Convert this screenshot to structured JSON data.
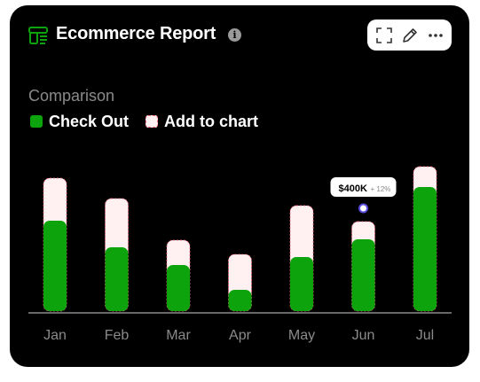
{
  "header": {
    "title": "Ecommerce Report",
    "title_icon": "store-menu-icon",
    "info_icon": "info-icon",
    "toolbar": {
      "expand_icon": "expand-icon",
      "edit_icon": "pencil-icon",
      "more_icon": "more-dots-icon"
    }
  },
  "colors": {
    "checkout": "#0ca30c",
    "add_to_chart": "#fff0f2",
    "add_to_chart_border": "#ff6b81",
    "background": "#000000"
  },
  "chart_data": {
    "type": "bar",
    "stacked": true,
    "title": "Comparison",
    "categories": [
      "Jan",
      "Feb",
      "Mar",
      "Apr",
      "May",
      "Jun",
      "Jul"
    ],
    "series": [
      {
        "name": "Check Out",
        "values": [
          102,
          72,
          52,
          24,
          61,
          81,
          140
        ]
      },
      {
        "name": "Add to chart",
        "values": [
          48,
          55,
          28,
          40,
          58,
          20,
          23
        ]
      }
    ],
    "legend": "top-left",
    "grid": false,
    "tooltip": {
      "category": "Jun",
      "value": "$400K",
      "change": "+ 12%"
    }
  }
}
